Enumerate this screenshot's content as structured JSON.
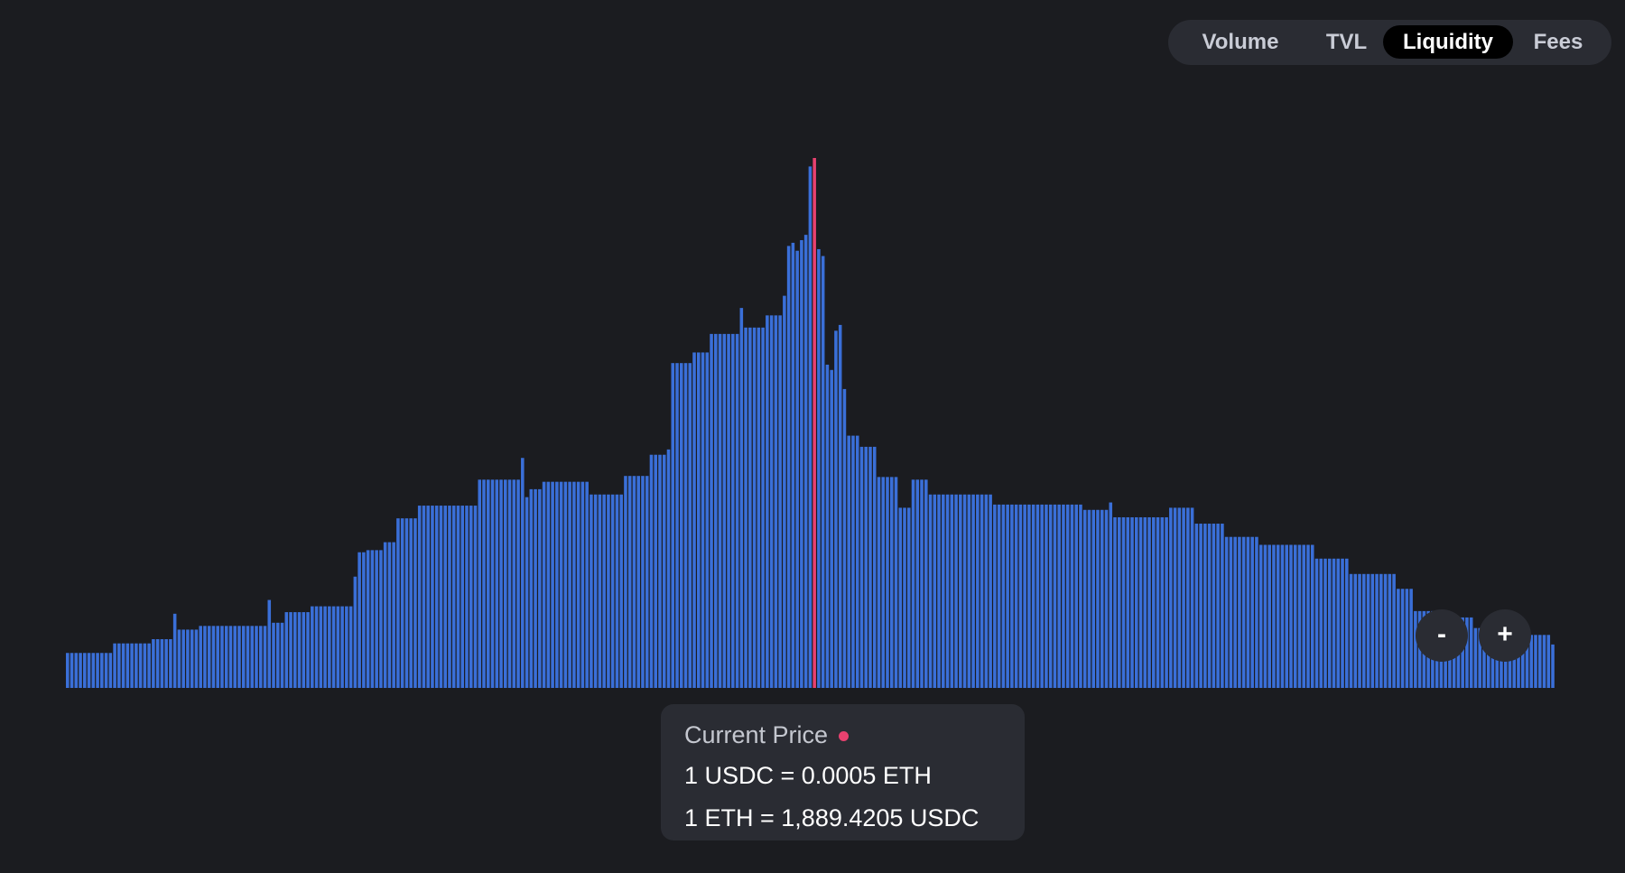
{
  "tabs": [
    {
      "label": "Volume",
      "active": false
    },
    {
      "label": "TVL",
      "active": false
    },
    {
      "label": "Liquidity",
      "active": true
    },
    {
      "label": "Fees",
      "active": false
    }
  ],
  "zoom_controls": {
    "zoom_out_label": "-",
    "zoom_in_label": "+"
  },
  "tooltip": {
    "title": "Current Price",
    "line1": "1 USDC = 0.0005 ETH",
    "line2": "1 ETH = 1,889.4205 USDC"
  },
  "colors": {
    "background": "#1b1c20",
    "bar": "#3a6fd8",
    "current_price": "#e8416f"
  },
  "chart_data": {
    "type": "bar",
    "title": "",
    "xlabel": "",
    "ylabel": "",
    "ylim": [
      0,
      100
    ],
    "grid": false,
    "current_price_index": 174,
    "value_runs": [
      [
        11,
        6.6
      ],
      [
        9,
        8.4
      ],
      [
        5,
        9.2
      ],
      [
        1,
        14
      ],
      [
        5,
        11
      ],
      [
        16,
        11.7
      ],
      [
        1,
        16.6
      ],
      [
        3,
        12.3
      ],
      [
        6,
        14.3
      ],
      [
        10,
        15.4
      ],
      [
        1,
        21
      ],
      [
        2,
        25.6
      ],
      [
        4,
        26
      ],
      [
        3,
        27.5
      ],
      [
        5,
        32
      ],
      [
        14,
        34.4
      ],
      [
        10,
        39.3
      ],
      [
        1,
        43.4
      ],
      [
        1,
        36
      ],
      [
        3,
        37.5
      ],
      [
        11,
        38.9
      ],
      [
        8,
        36.5
      ],
      [
        6,
        40
      ],
      [
        4,
        44
      ],
      [
        1,
        45
      ],
      [
        5,
        61.3
      ],
      [
        4,
        63.3
      ],
      [
        7,
        66.8
      ],
      [
        1,
        71.7
      ],
      [
        5,
        68
      ],
      [
        4,
        70.3
      ],
      [
        1,
        74
      ],
      [
        1,
        83.4
      ],
      [
        1,
        84
      ],
      [
        1,
        82.5
      ],
      [
        1,
        84.5
      ],
      [
        1,
        85.5
      ],
      [
        1,
        98.4
      ],
      [
        1,
        100
      ],
      [
        1,
        82.8
      ],
      [
        1,
        81.5
      ],
      [
        1,
        61
      ],
      [
        1,
        60
      ],
      [
        1,
        67.4
      ],
      [
        1,
        68.5
      ],
      [
        1,
        56.4
      ],
      [
        3,
        47.6
      ],
      [
        4,
        45.5
      ],
      [
        5,
        39.8
      ],
      [
        3,
        34
      ],
      [
        4,
        39.3
      ],
      [
        15,
        36.5
      ],
      [
        21,
        34.6
      ],
      [
        6,
        33.6
      ],
      [
        1,
        35
      ],
      [
        13,
        32.2
      ],
      [
        6,
        34
      ],
      [
        7,
        31
      ],
      [
        8,
        28.5
      ],
      [
        13,
        27
      ],
      [
        8,
        24.4
      ],
      [
        11,
        21.5
      ],
      [
        4,
        18.7
      ],
      [
        8,
        14.5
      ],
      [
        6,
        13.3
      ],
      [
        12,
        11.3
      ],
      [
        6,
        10
      ],
      [
        1,
        8.2
      ]
    ]
  }
}
